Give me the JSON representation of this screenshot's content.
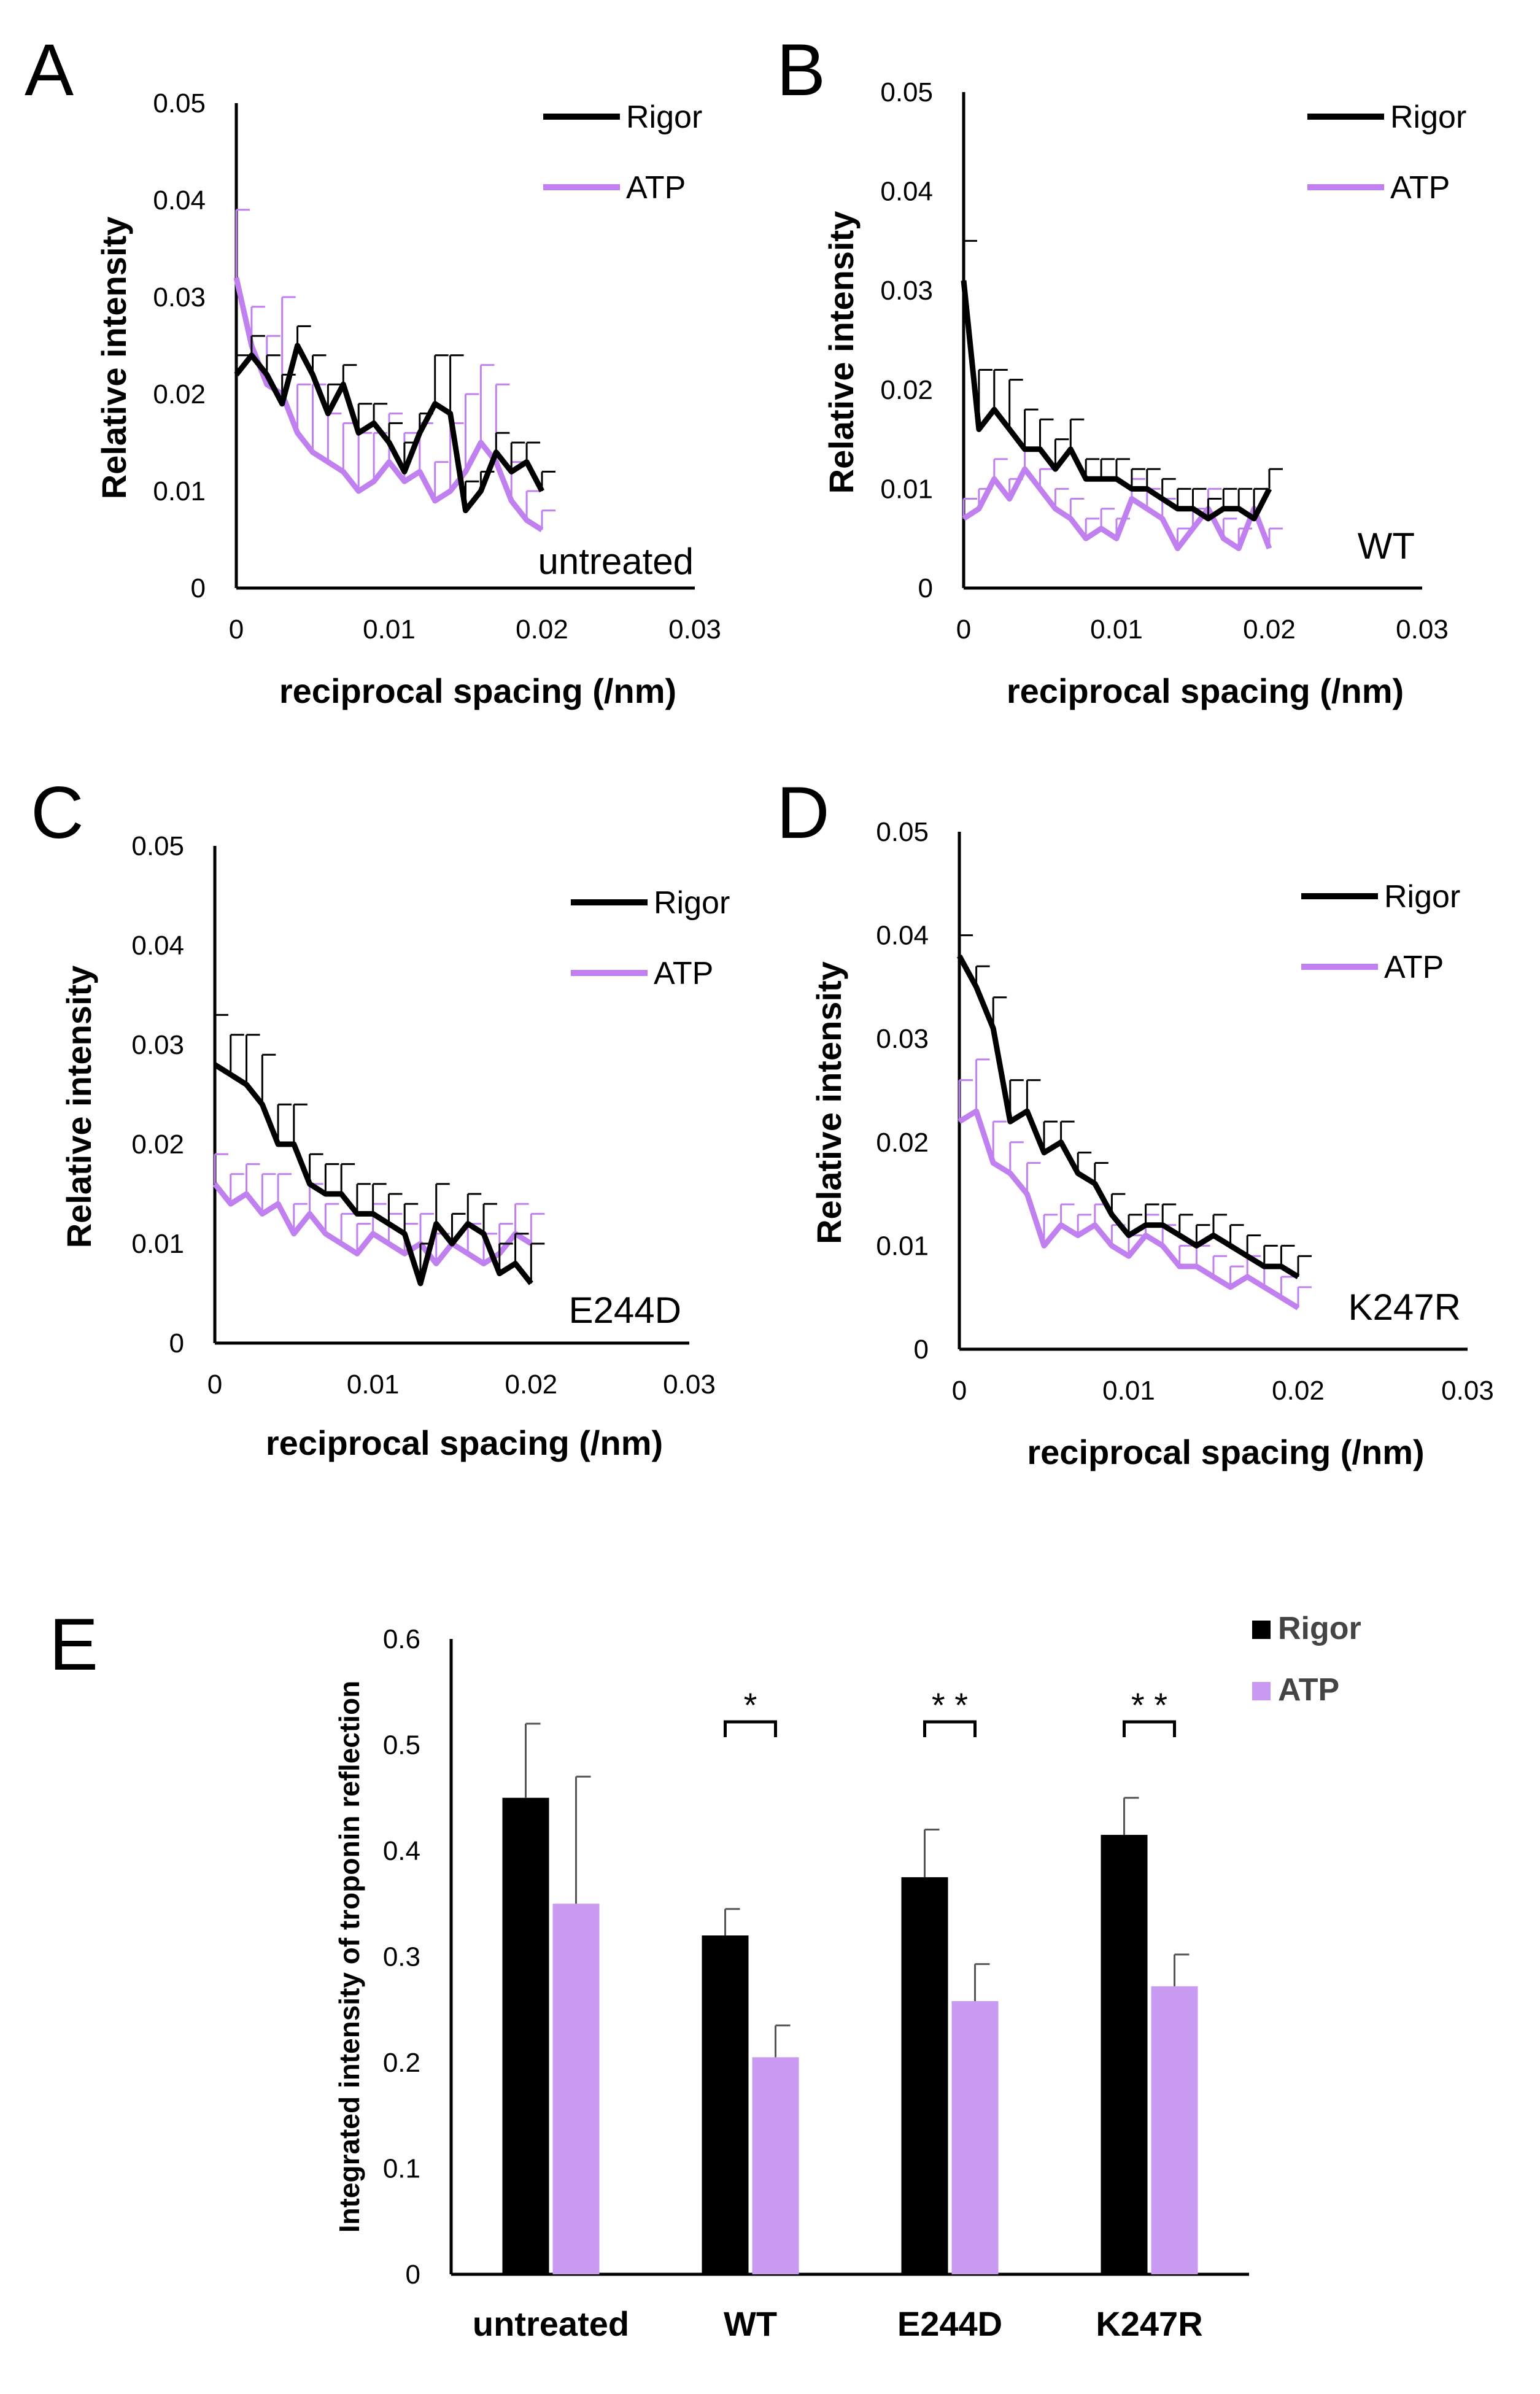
{
  "colors": {
    "rigor": "#000000",
    "atp": "#c080f0",
    "atp_bar": "#c89af2",
    "axis": "#000000"
  },
  "chart_data": [
    {
      "panel": "A",
      "type": "line",
      "sample_label": "untreated",
      "xlabel": "reciprocal spacing (/nm)",
      "ylabel": "Relative intensity",
      "xlim": [
        0,
        0.03
      ],
      "ylim": [
        0,
        0.05
      ],
      "x_ticks": [
        "0",
        "0.01",
        "0.02",
        "0.03"
      ],
      "y_ticks": [
        "0",
        "0.01",
        "0.02",
        "0.03",
        "0.04",
        "0.05"
      ],
      "x": [
        0,
        0.001,
        0.002,
        0.003,
        0.004,
        0.005,
        0.006,
        0.007,
        0.008,
        0.009,
        0.01,
        0.011,
        0.012,
        0.013,
        0.014,
        0.015,
        0.016,
        0.017,
        0.018,
        0.019,
        0.02
      ],
      "series": [
        {
          "name": "Rigor",
          "color": "#000000",
          "values": [
            0.022,
            0.024,
            0.022,
            0.019,
            0.025,
            0.022,
            0.018,
            0.021,
            0.016,
            0.017,
            0.015,
            0.012,
            0.016,
            0.019,
            0.018,
            0.008,
            0.01,
            0.014,
            0.012,
            0.013,
            0.01
          ],
          "errors": [
            0.002,
            0.002,
            0.002,
            0.003,
            0.002,
            0.002,
            0.003,
            0.002,
            0.003,
            0.002,
            0.002,
            0.003,
            0.002,
            0.005,
            0.006,
            0.003,
            0.002,
            0.002,
            0.003,
            0.002,
            0.002
          ]
        },
        {
          "name": "ATP",
          "color": "#c080f0",
          "values": [
            0.032,
            0.025,
            0.021,
            0.02,
            0.016,
            0.014,
            0.013,
            0.012,
            0.01,
            0.011,
            0.013,
            0.011,
            0.012,
            0.009,
            0.01,
            0.012,
            0.015,
            0.013,
            0.009,
            0.007,
            0.006
          ],
          "errors": [
            0.007,
            0.004,
            0.005,
            0.01,
            0.005,
            0.007,
            0.005,
            0.005,
            0.006,
            0.005,
            0.005,
            0.005,
            0.005,
            0.004,
            0.007,
            0.008,
            0.008,
            0.008,
            0.004,
            0.003,
            0.002
          ]
        }
      ]
    },
    {
      "panel": "B",
      "type": "line",
      "sample_label": "WT",
      "xlabel": "reciprocal spacing (/nm)",
      "ylabel": "Relative intensity",
      "xlim": [
        0,
        0.03
      ],
      "ylim": [
        0,
        0.05
      ],
      "x_ticks": [
        "0",
        "0.01",
        "0.02",
        "0.03"
      ],
      "y_ticks": [
        "0",
        "0.01",
        "0.02",
        "0.03",
        "0.04",
        "0.05"
      ],
      "x": [
        0,
        0.001,
        0.002,
        0.003,
        0.004,
        0.005,
        0.006,
        0.007,
        0.008,
        0.009,
        0.01,
        0.011,
        0.012,
        0.013,
        0.014,
        0.015,
        0.016,
        0.017,
        0.018,
        0.019,
        0.02
      ],
      "series": [
        {
          "name": "Rigor",
          "color": "#000000",
          "values": [
            0.031,
            0.016,
            0.018,
            0.016,
            0.014,
            0.014,
            0.012,
            0.014,
            0.011,
            0.011,
            0.011,
            0.01,
            0.01,
            0.009,
            0.008,
            0.008,
            0.007,
            0.008,
            0.008,
            0.007,
            0.01
          ],
          "errors": [
            0.004,
            0.006,
            0.004,
            0.005,
            0.004,
            0.003,
            0.003,
            0.003,
            0.002,
            0.002,
            0.002,
            0.002,
            0.002,
            0.002,
            0.002,
            0.002,
            0.002,
            0.002,
            0.002,
            0.003,
            0.002
          ]
        },
        {
          "name": "ATP",
          "color": "#c080f0",
          "values": [
            0.007,
            0.008,
            0.011,
            0.009,
            0.012,
            0.01,
            0.008,
            0.007,
            0.005,
            0.006,
            0.005,
            0.009,
            0.008,
            0.007,
            0.004,
            0.006,
            0.008,
            0.005,
            0.004,
            0.008,
            0.004
          ],
          "errors": [
            0.002,
            0.002,
            0.002,
            0.002,
            0.002,
            0.002,
            0.002,
            0.002,
            0.002,
            0.002,
            0.002,
            0.002,
            0.002,
            0.002,
            0.002,
            0.002,
            0.002,
            0.002,
            0.002,
            0.002,
            0.002
          ]
        }
      ]
    },
    {
      "panel": "C",
      "type": "line",
      "sample_label": "E244D",
      "xlabel": "reciprocal spacing (/nm)",
      "ylabel": "Relative intensity",
      "xlim": [
        0,
        0.03
      ],
      "ylim": [
        0,
        0.05
      ],
      "x_ticks": [
        "0",
        "0.01",
        "0.02",
        "0.03"
      ],
      "y_ticks": [
        "0",
        "0.01",
        "0.02",
        "0.03",
        "0.04",
        "0.05"
      ],
      "x": [
        0,
        0.001,
        0.002,
        0.003,
        0.004,
        0.005,
        0.006,
        0.007,
        0.008,
        0.009,
        0.01,
        0.011,
        0.012,
        0.013,
        0.014,
        0.015,
        0.016,
        0.017,
        0.018,
        0.019,
        0.02
      ],
      "series": [
        {
          "name": "Rigor",
          "color": "#000000",
          "values": [
            0.028,
            0.027,
            0.026,
            0.024,
            0.02,
            0.02,
            0.016,
            0.015,
            0.015,
            0.013,
            0.013,
            0.012,
            0.011,
            0.006,
            0.012,
            0.01,
            0.012,
            0.011,
            0.007,
            0.008,
            0.006
          ],
          "errors": [
            0.005,
            0.004,
            0.005,
            0.005,
            0.004,
            0.004,
            0.003,
            0.003,
            0.003,
            0.003,
            0.003,
            0.003,
            0.003,
            0.004,
            0.004,
            0.003,
            0.003,
            0.003,
            0.003,
            0.003,
            0.004
          ]
        },
        {
          "name": "ATP",
          "color": "#c080f0",
          "values": [
            0.016,
            0.014,
            0.015,
            0.013,
            0.014,
            0.011,
            0.013,
            0.011,
            0.01,
            0.009,
            0.011,
            0.01,
            0.009,
            0.01,
            0.008,
            0.01,
            0.009,
            0.008,
            0.009,
            0.011,
            0.01
          ],
          "errors": [
            0.003,
            0.003,
            0.003,
            0.004,
            0.003,
            0.003,
            0.003,
            0.003,
            0.003,
            0.003,
            0.003,
            0.003,
            0.003,
            0.003,
            0.003,
            0.003,
            0.003,
            0.003,
            0.003,
            0.003,
            0.003
          ]
        }
      ]
    },
    {
      "panel": "D",
      "type": "line",
      "sample_label": "K247R",
      "xlabel": "reciprocal spacing (/nm)",
      "ylabel": "Relative intensity",
      "xlim": [
        0,
        0.03
      ],
      "ylim": [
        0,
        0.05
      ],
      "x_ticks": [
        "0",
        "0.01",
        "0.02",
        "0.03"
      ],
      "y_ticks": [
        "0",
        "0.01",
        "0.02",
        "0.03",
        "0.04",
        "0.05"
      ],
      "x": [
        0,
        0.001,
        0.002,
        0.003,
        0.004,
        0.005,
        0.006,
        0.007,
        0.008,
        0.009,
        0.01,
        0.011,
        0.012,
        0.013,
        0.014,
        0.015,
        0.016,
        0.017,
        0.018,
        0.019,
        0.02
      ],
      "series": [
        {
          "name": "Rigor",
          "color": "#000000",
          "values": [
            0.038,
            0.035,
            0.031,
            0.022,
            0.023,
            0.019,
            0.02,
            0.017,
            0.016,
            0.013,
            0.011,
            0.012,
            0.012,
            0.011,
            0.01,
            0.011,
            0.01,
            0.009,
            0.008,
            0.008,
            0.007
          ],
          "errors": [
            0.002,
            0.002,
            0.003,
            0.004,
            0.003,
            0.003,
            0.002,
            0.002,
            0.002,
            0.002,
            0.002,
            0.002,
            0.002,
            0.002,
            0.002,
            0.002,
            0.002,
            0.002,
            0.002,
            0.002,
            0.002
          ]
        },
        {
          "name": "ATP",
          "color": "#c080f0",
          "values": [
            0.022,
            0.023,
            0.018,
            0.017,
            0.015,
            0.01,
            0.012,
            0.011,
            0.012,
            0.01,
            0.009,
            0.011,
            0.01,
            0.008,
            0.008,
            0.007,
            0.006,
            0.007,
            0.006,
            0.005,
            0.004
          ],
          "errors": [
            0.004,
            0.005,
            0.004,
            0.003,
            0.003,
            0.003,
            0.002,
            0.002,
            0.002,
            0.002,
            0.002,
            0.002,
            0.002,
            0.002,
            0.002,
            0.002,
            0.002,
            0.002,
            0.002,
            0.002,
            0.002
          ]
        }
      ]
    },
    {
      "panel": "E",
      "type": "bar",
      "ylabel": "Integrated intensity of troponin reflection",
      "ylim": [
        0,
        0.6
      ],
      "y_ticks": [
        "0",
        "0.1",
        "0.2",
        "0.3",
        "0.4",
        "0.5",
        "0.6"
      ],
      "categories": [
        "untreated",
        "WT",
        "E244D",
        "K247R"
      ],
      "series": [
        {
          "name": "Rigor",
          "color": "#000000",
          "values": [
            0.45,
            0.32,
            0.375,
            0.415
          ],
          "errors": [
            0.07,
            0.025,
            0.045,
            0.035
          ]
        },
        {
          "name": "ATP",
          "color": "#c89af2",
          "values": [
            0.35,
            0.205,
            0.258,
            0.272
          ],
          "errors": [
            0.12,
            0.03,
            0.035,
            0.03
          ]
        }
      ],
      "significance": [
        {
          "category": "WT",
          "label": "*"
        },
        {
          "category": "E244D",
          "label": "* *"
        },
        {
          "category": "K247R",
          "label": "* *"
        }
      ]
    }
  ]
}
